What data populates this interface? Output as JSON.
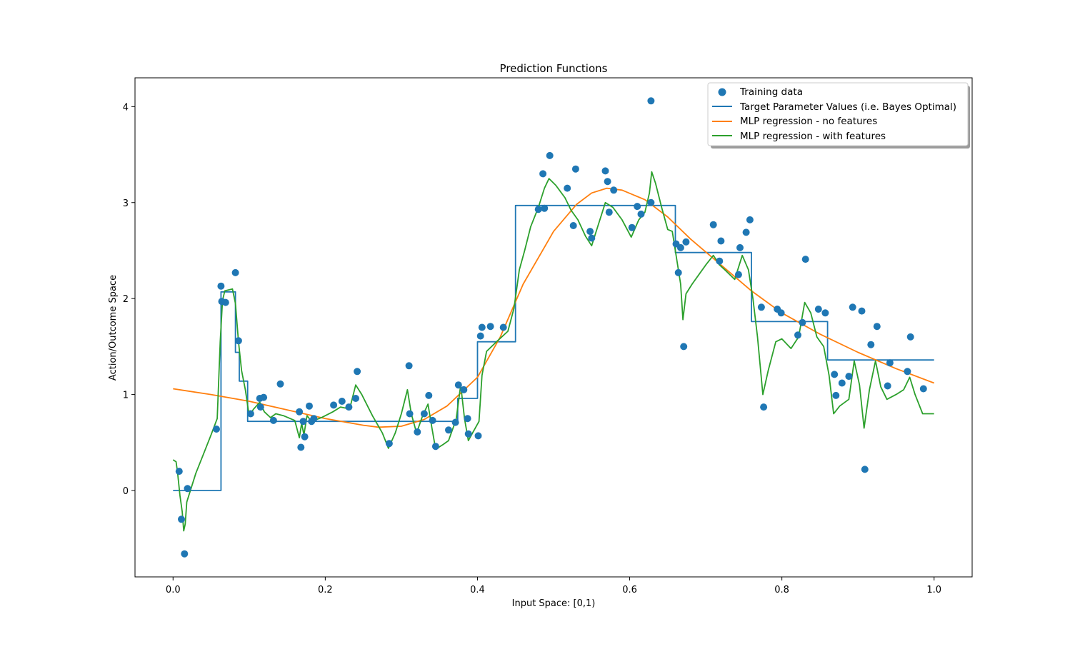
{
  "chart_data": {
    "type": "line",
    "title": "Prediction Functions",
    "xlabel": "Input Space: [0,1)",
    "ylabel": "Action/Outcome Space",
    "xlim": [
      -0.05,
      1.05
    ],
    "ylim": [
      -0.9,
      4.3
    ],
    "xticks": [
      0.0,
      0.2,
      0.4,
      0.6,
      0.8,
      1.0
    ],
    "xtick_labels": [
      "0.0",
      "0.2",
      "0.4",
      "0.6",
      "0.8",
      "1.0"
    ],
    "yticks": [
      0,
      1,
      2,
      3,
      4
    ],
    "ytick_labels": [
      "0",
      "1",
      "2",
      "3",
      "4"
    ],
    "grid": false,
    "legend_position": "top-right",
    "colors": {
      "training": "#1f77b4",
      "target": "#1f77b4",
      "mlp_no_features": "#ff7f0e",
      "mlp_with_features": "#2ca02c"
    },
    "series": [
      {
        "name": "Training data",
        "kind": "scatter",
        "points": [
          [
            0.008,
            0.2
          ],
          [
            0.011,
            -0.3
          ],
          [
            0.015,
            -0.66
          ],
          [
            0.019,
            0.02
          ],
          [
            0.057,
            0.64
          ],
          [
            0.063,
            2.13
          ],
          [
            0.064,
            1.97
          ],
          [
            0.069,
            1.96
          ],
          [
            0.082,
            2.27
          ],
          [
            0.086,
            1.56
          ],
          [
            0.102,
            0.8
          ],
          [
            0.114,
            0.96
          ],
          [
            0.119,
            0.97
          ],
          [
            0.115,
            0.87
          ],
          [
            0.132,
            0.73
          ],
          [
            0.141,
            1.11
          ],
          [
            0.166,
            0.82
          ],
          [
            0.168,
            0.45
          ],
          [
            0.171,
            0.72
          ],
          [
            0.173,
            0.56
          ],
          [
            0.179,
            0.88
          ],
          [
            0.182,
            0.72
          ],
          [
            0.185,
            0.75
          ],
          [
            0.211,
            0.89
          ],
          [
            0.222,
            0.93
          ],
          [
            0.231,
            0.87
          ],
          [
            0.24,
            0.96
          ],
          [
            0.242,
            1.24
          ],
          [
            0.284,
            0.49
          ],
          [
            0.31,
            1.3
          ],
          [
            0.311,
            0.8
          ],
          [
            0.321,
            0.61
          ],
          [
            0.33,
            0.8
          ],
          [
            0.336,
            0.99
          ],
          [
            0.341,
            0.73
          ],
          [
            0.345,
            0.46
          ],
          [
            0.362,
            0.63
          ],
          [
            0.371,
            0.71
          ],
          [
            0.375,
            1.1
          ],
          [
            0.382,
            1.05
          ],
          [
            0.387,
            0.75
          ],
          [
            0.388,
            0.59
          ],
          [
            0.401,
            0.57
          ],
          [
            0.404,
            1.61
          ],
          [
            0.406,
            1.7
          ],
          [
            0.417,
            1.71
          ],
          [
            0.434,
            1.7
          ],
          [
            0.48,
            2.93
          ],
          [
            0.486,
            3.3
          ],
          [
            0.488,
            2.94
          ],
          [
            0.495,
            3.49
          ],
          [
            0.518,
            3.15
          ],
          [
            0.526,
            2.76
          ],
          [
            0.529,
            3.35
          ],
          [
            0.548,
            2.7
          ],
          [
            0.55,
            2.63
          ],
          [
            0.568,
            3.33
          ],
          [
            0.571,
            3.22
          ],
          [
            0.573,
            2.9
          ],
          [
            0.579,
            3.13
          ],
          [
            0.603,
            2.74
          ],
          [
            0.61,
            2.96
          ],
          [
            0.615,
            2.88
          ],
          [
            0.628,
            4.06
          ],
          [
            0.628,
            3.0
          ],
          [
            0.661,
            2.57
          ],
          [
            0.664,
            2.27
          ],
          [
            0.667,
            2.53
          ],
          [
            0.671,
            1.5
          ],
          [
            0.674,
            2.59
          ],
          [
            0.71,
            2.77
          ],
          [
            0.718,
            2.39
          ],
          [
            0.72,
            2.6
          ],
          [
            0.743,
            2.25
          ],
          [
            0.745,
            2.53
          ],
          [
            0.753,
            2.69
          ],
          [
            0.758,
            2.82
          ],
          [
            0.773,
            1.91
          ],
          [
            0.776,
            0.87
          ],
          [
            0.794,
            1.89
          ],
          [
            0.799,
            1.85
          ],
          [
            0.821,
            1.62
          ],
          [
            0.827,
            1.75
          ],
          [
            0.831,
            2.41
          ],
          [
            0.848,
            1.89
          ],
          [
            0.857,
            1.85
          ],
          [
            0.869,
            1.21
          ],
          [
            0.871,
            0.99
          ],
          [
            0.879,
            1.12
          ],
          [
            0.888,
            1.19
          ],
          [
            0.893,
            1.91
          ],
          [
            0.905,
            1.87
          ],
          [
            0.909,
            0.22
          ],
          [
            0.917,
            1.52
          ],
          [
            0.925,
            1.71
          ],
          [
            0.939,
            1.09
          ],
          [
            0.942,
            1.33
          ],
          [
            0.965,
            1.24
          ],
          [
            0.969,
            1.6
          ],
          [
            0.986,
            1.06
          ]
        ]
      },
      {
        "name": "Target Parameter Values (i.e. Bayes Optimal)",
        "kind": "step",
        "points": [
          [
            0.0,
            0.0
          ],
          [
            0.063,
            0.0
          ],
          [
            0.063,
            2.07
          ],
          [
            0.082,
            2.07
          ],
          [
            0.082,
            1.44
          ],
          [
            0.087,
            1.44
          ],
          [
            0.087,
            1.14
          ],
          [
            0.098,
            1.14
          ],
          [
            0.098,
            0.72
          ],
          [
            0.374,
            0.72
          ],
          [
            0.374,
            0.96
          ],
          [
            0.4,
            0.96
          ],
          [
            0.4,
            1.55
          ],
          [
            0.45,
            1.55
          ],
          [
            0.45,
            2.97
          ],
          [
            0.66,
            2.97
          ],
          [
            0.66,
            2.48
          ],
          [
            0.76,
            2.48
          ],
          [
            0.76,
            1.76
          ],
          [
            0.86,
            1.76
          ],
          [
            0.86,
            1.36
          ],
          [
            1.0,
            1.36
          ]
        ]
      },
      {
        "name": "MLP regression - no features",
        "kind": "line",
        "points": [
          [
            0.0,
            1.06
          ],
          [
            0.05,
            1.0
          ],
          [
            0.1,
            0.93
          ],
          [
            0.15,
            0.84
          ],
          [
            0.2,
            0.75
          ],
          [
            0.25,
            0.68
          ],
          [
            0.27,
            0.66
          ],
          [
            0.3,
            0.67
          ],
          [
            0.33,
            0.74
          ],
          [
            0.36,
            0.88
          ],
          [
            0.4,
            1.18
          ],
          [
            0.43,
            1.6
          ],
          [
            0.46,
            2.15
          ],
          [
            0.5,
            2.7
          ],
          [
            0.53,
            2.98
          ],
          [
            0.55,
            3.1
          ],
          [
            0.57,
            3.15
          ],
          [
            0.59,
            3.13
          ],
          [
            0.62,
            3.03
          ],
          [
            0.65,
            2.85
          ],
          [
            0.68,
            2.62
          ],
          [
            0.72,
            2.35
          ],
          [
            0.76,
            2.08
          ],
          [
            0.8,
            1.85
          ],
          [
            0.85,
            1.63
          ],
          [
            0.9,
            1.44
          ],
          [
            0.95,
            1.27
          ],
          [
            1.0,
            1.12
          ]
        ]
      },
      {
        "name": "MLP regression - with features",
        "kind": "line",
        "points": [
          [
            0.0,
            0.32
          ],
          [
            0.004,
            0.3
          ],
          [
            0.006,
            0.18
          ],
          [
            0.009,
            -0.05
          ],
          [
            0.012,
            -0.22
          ],
          [
            0.014,
            -0.42
          ],
          [
            0.016,
            -0.35
          ],
          [
            0.018,
            -0.12
          ],
          [
            0.022,
            -0.02
          ],
          [
            0.03,
            0.18
          ],
          [
            0.04,
            0.38
          ],
          [
            0.05,
            0.58
          ],
          [
            0.058,
            0.75
          ],
          [
            0.062,
            1.55
          ],
          [
            0.065,
            1.98
          ],
          [
            0.068,
            2.08
          ],
          [
            0.078,
            2.1
          ],
          [
            0.082,
            1.95
          ],
          [
            0.086,
            1.55
          ],
          [
            0.09,
            1.25
          ],
          [
            0.095,
            1.05
          ],
          [
            0.1,
            0.78
          ],
          [
            0.106,
            0.85
          ],
          [
            0.114,
            0.92
          ],
          [
            0.12,
            0.82
          ],
          [
            0.128,
            0.76
          ],
          [
            0.135,
            0.8
          ],
          [
            0.145,
            0.78
          ],
          [
            0.16,
            0.73
          ],
          [
            0.166,
            0.55
          ],
          [
            0.169,
            0.7
          ],
          [
            0.172,
            0.58
          ],
          [
            0.176,
            0.78
          ],
          [
            0.182,
            0.72
          ],
          [
            0.195,
            0.76
          ],
          [
            0.21,
            0.82
          ],
          [
            0.22,
            0.87
          ],
          [
            0.232,
            0.85
          ],
          [
            0.24,
            1.1
          ],
          [
            0.248,
            1.0
          ],
          [
            0.262,
            0.78
          ],
          [
            0.275,
            0.6
          ],
          [
            0.283,
            0.44
          ],
          [
            0.292,
            0.6
          ],
          [
            0.3,
            0.8
          ],
          [
            0.308,
            1.05
          ],
          [
            0.313,
            0.8
          ],
          [
            0.32,
            0.6
          ],
          [
            0.328,
            0.78
          ],
          [
            0.335,
            0.9
          ],
          [
            0.34,
            0.66
          ],
          [
            0.345,
            0.43
          ],
          [
            0.355,
            0.48
          ],
          [
            0.362,
            0.52
          ],
          [
            0.372,
            0.74
          ],
          [
            0.378,
            1.1
          ],
          [
            0.383,
            0.75
          ],
          [
            0.388,
            0.52
          ],
          [
            0.395,
            0.62
          ],
          [
            0.402,
            0.72
          ],
          [
            0.406,
            1.2
          ],
          [
            0.412,
            1.45
          ],
          [
            0.425,
            1.55
          ],
          [
            0.44,
            1.66
          ],
          [
            0.448,
            1.9
          ],
          [
            0.455,
            2.3
          ],
          [
            0.462,
            2.5
          ],
          [
            0.47,
            2.75
          ],
          [
            0.48,
            2.95
          ],
          [
            0.488,
            3.15
          ],
          [
            0.494,
            3.25
          ],
          [
            0.503,
            3.18
          ],
          [
            0.515,
            3.05
          ],
          [
            0.523,
            2.92
          ],
          [
            0.532,
            2.82
          ],
          [
            0.542,
            2.65
          ],
          [
            0.55,
            2.55
          ],
          [
            0.558,
            2.75
          ],
          [
            0.568,
            3.0
          ],
          [
            0.578,
            2.95
          ],
          [
            0.59,
            2.82
          ],
          [
            0.602,
            2.64
          ],
          [
            0.612,
            2.82
          ],
          [
            0.62,
            2.9
          ],
          [
            0.626,
            3.1
          ],
          [
            0.629,
            3.32
          ],
          [
            0.634,
            3.2
          ],
          [
            0.642,
            2.95
          ],
          [
            0.65,
            2.72
          ],
          [
            0.656,
            2.7
          ],
          [
            0.662,
            2.4
          ],
          [
            0.667,
            2.15
          ],
          [
            0.67,
            1.78
          ],
          [
            0.674,
            2.05
          ],
          [
            0.682,
            2.15
          ],
          [
            0.7,
            2.35
          ],
          [
            0.71,
            2.45
          ],
          [
            0.718,
            2.35
          ],
          [
            0.725,
            2.3
          ],
          [
            0.738,
            2.2
          ],
          [
            0.748,
            2.45
          ],
          [
            0.756,
            2.3
          ],
          [
            0.762,
            2.0
          ],
          [
            0.768,
            1.6
          ],
          [
            0.775,
            1.0
          ],
          [
            0.782,
            1.25
          ],
          [
            0.792,
            1.55
          ],
          [
            0.8,
            1.58
          ],
          [
            0.812,
            1.48
          ],
          [
            0.822,
            1.6
          ],
          [
            0.83,
            1.96
          ],
          [
            0.838,
            1.85
          ],
          [
            0.846,
            1.6
          ],
          [
            0.855,
            1.5
          ],
          [
            0.862,
            1.2
          ],
          [
            0.868,
            0.8
          ],
          [
            0.876,
            0.88
          ],
          [
            0.888,
            0.95
          ],
          [
            0.895,
            1.35
          ],
          [
            0.902,
            1.1
          ],
          [
            0.908,
            0.65
          ],
          [
            0.915,
            1.05
          ],
          [
            0.923,
            1.35
          ],
          [
            0.93,
            1.08
          ],
          [
            0.938,
            0.95
          ],
          [
            0.95,
            1.0
          ],
          [
            0.96,
            1.05
          ],
          [
            0.968,
            1.18
          ],
          [
            0.975,
            1.0
          ],
          [
            0.985,
            0.8
          ],
          [
            1.0,
            0.8
          ]
        ]
      }
    ]
  }
}
